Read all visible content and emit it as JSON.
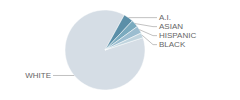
{
  "chart_data": {
    "type": "pie",
    "categories": [
      "WHITE",
      "A.I.",
      "ASIAN",
      "HISPANIC",
      "BLACK"
    ],
    "values": [
      88,
      4,
      3,
      3,
      2
    ],
    "colors": [
      "#d5dde5",
      "#5b8fa8",
      "#7aaabe",
      "#9bbdd0",
      "#c0d4de"
    ]
  }
}
